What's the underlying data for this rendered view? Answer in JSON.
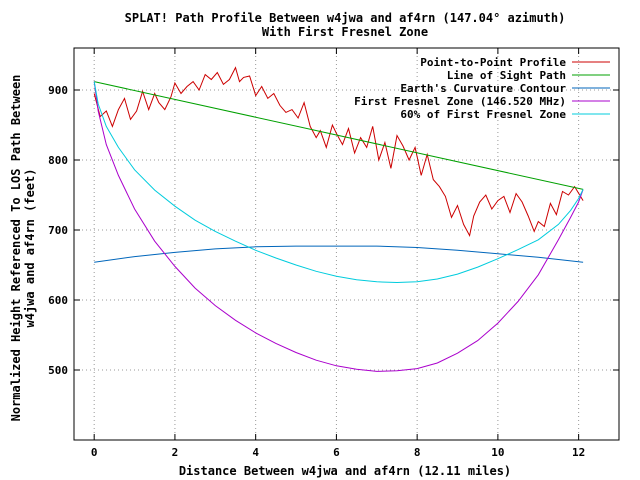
{
  "chart_data": {
    "type": "line",
    "title": "SPLAT! Path Profile Between w4jwa and af4rn (147.04° azimuth)",
    "subtitle": "With First Fresnel Zone",
    "xlabel": "Distance Between w4jwa and af4rn (12.11 miles)",
    "ylabel_line1": "Normalized Height Referenced To LOS Path Between",
    "ylabel_line2": "w4jwa and af4rn (feet)",
    "xlim": [
      -0.5,
      13.0
    ],
    "ylim": [
      400,
      960
    ],
    "xticks": [
      0,
      2,
      4,
      6,
      8,
      10,
      12
    ],
    "yticks": [
      500,
      600,
      700,
      800,
      900
    ],
    "grid": true,
    "legend_position": "top-right",
    "colors": {
      "profile": "#cc0000",
      "los": "#00a000",
      "curvature": "#0066bb",
      "fresnel": "#aa00cc",
      "fresnel60": "#00ccdd"
    },
    "series": [
      {
        "name": "Point-to-Point Profile",
        "key": "profile",
        "x": [
          0,
          0.15,
          0.3,
          0.45,
          0.6,
          0.75,
          0.9,
          1.05,
          1.2,
          1.35,
          1.5,
          1.6,
          1.75,
          1.9,
          2.0,
          2.15,
          2.3,
          2.45,
          2.6,
          2.75,
          2.9,
          3.05,
          3.2,
          3.35,
          3.5,
          3.6,
          3.7,
          3.85,
          4.0,
          4.15,
          4.3,
          4.45,
          4.6,
          4.75,
          4.9,
          5.05,
          5.2,
          5.35,
          5.5,
          5.6,
          5.75,
          5.9,
          6.0,
          6.15,
          6.3,
          6.45,
          6.6,
          6.75,
          6.9,
          7.05,
          7.2,
          7.35,
          7.5,
          7.65,
          7.8,
          7.95,
          8.1,
          8.25,
          8.4,
          8.55,
          8.7,
          8.85,
          9.0,
          9.15,
          9.3,
          9.4,
          9.55,
          9.7,
          9.85,
          10.0,
          10.15,
          10.3,
          10.45,
          10.6,
          10.75,
          10.9,
          11.0,
          11.15,
          11.3,
          11.45,
          11.6,
          11.75,
          11.9,
          12.11
        ],
        "y": [
          895,
          862,
          870,
          848,
          872,
          888,
          858,
          870,
          898,
          872,
          895,
          882,
          872,
          890,
          910,
          895,
          905,
          912,
          900,
          922,
          915,
          925,
          908,
          915,
          932,
          912,
          918,
          920,
          892,
          905,
          888,
          895,
          878,
          868,
          872,
          860,
          882,
          848,
          832,
          842,
          818,
          850,
          838,
          822,
          845,
          810,
          832,
          818,
          848,
          800,
          825,
          788,
          835,
          820,
          800,
          818,
          778,
          808,
          772,
          762,
          748,
          718,
          735,
          708,
          692,
          720,
          740,
          750,
          730,
          742,
          748,
          725,
          752,
          740,
          720,
          698,
          712,
          705,
          738,
          722,
          755,
          750,
          762,
          742
        ]
      },
      {
        "name": "Line of Sight Path",
        "key": "los",
        "x": [
          0,
          12.11
        ],
        "y": [
          912,
          758
        ]
      },
      {
        "name": "Earth's Curvature Contour",
        "key": "curvature",
        "x": [
          0,
          1,
          2,
          3,
          4,
          5,
          6,
          7,
          8,
          9,
          10,
          11,
          12.11
        ],
        "y": [
          654,
          662,
          668,
          673,
          676,
          677,
          677,
          677,
          675,
          671,
          666,
          661,
          654
        ]
      },
      {
        "name": "First Fresnel Zone (146.520 MHz)",
        "key": "fresnel",
        "x": [
          0,
          0.1,
          0.3,
          0.6,
          1.0,
          1.5,
          2.0,
          2.5,
          3.0,
          3.5,
          4.0,
          4.5,
          5.0,
          5.5,
          6.0,
          6.5,
          7.0,
          7.5,
          8.0,
          8.5,
          9.0,
          9.5,
          10.0,
          10.5,
          11.0,
          11.5,
          11.8,
          12.0,
          12.11
        ],
        "y": [
          912,
          870,
          822,
          778,
          730,
          684,
          648,
          617,
          592,
          571,
          553,
          538,
          525,
          514,
          506,
          501,
          498,
          499,
          502,
          510,
          524,
          542,
          567,
          598,
          636,
          686,
          718,
          740,
          758
        ]
      },
      {
        "name": "60% of First Fresnel Zone",
        "key": "fresnel60",
        "x": [
          0,
          0.1,
          0.3,
          0.6,
          1.0,
          1.5,
          2.0,
          2.5,
          3.0,
          3.5,
          4.0,
          4.5,
          5.0,
          5.5,
          6.0,
          6.5,
          7.0,
          7.5,
          8.0,
          8.5,
          9.0,
          9.5,
          10.0,
          10.5,
          11.0,
          11.5,
          11.8,
          12.0,
          12.11
        ],
        "y": [
          912,
          880,
          848,
          818,
          786,
          757,
          734,
          714,
          698,
          684,
          671,
          660,
          650,
          641,
          634,
          629,
          626,
          625,
          626,
          630,
          637,
          647,
          659,
          672,
          686,
          708,
          728,
          745,
          758
        ]
      }
    ]
  }
}
